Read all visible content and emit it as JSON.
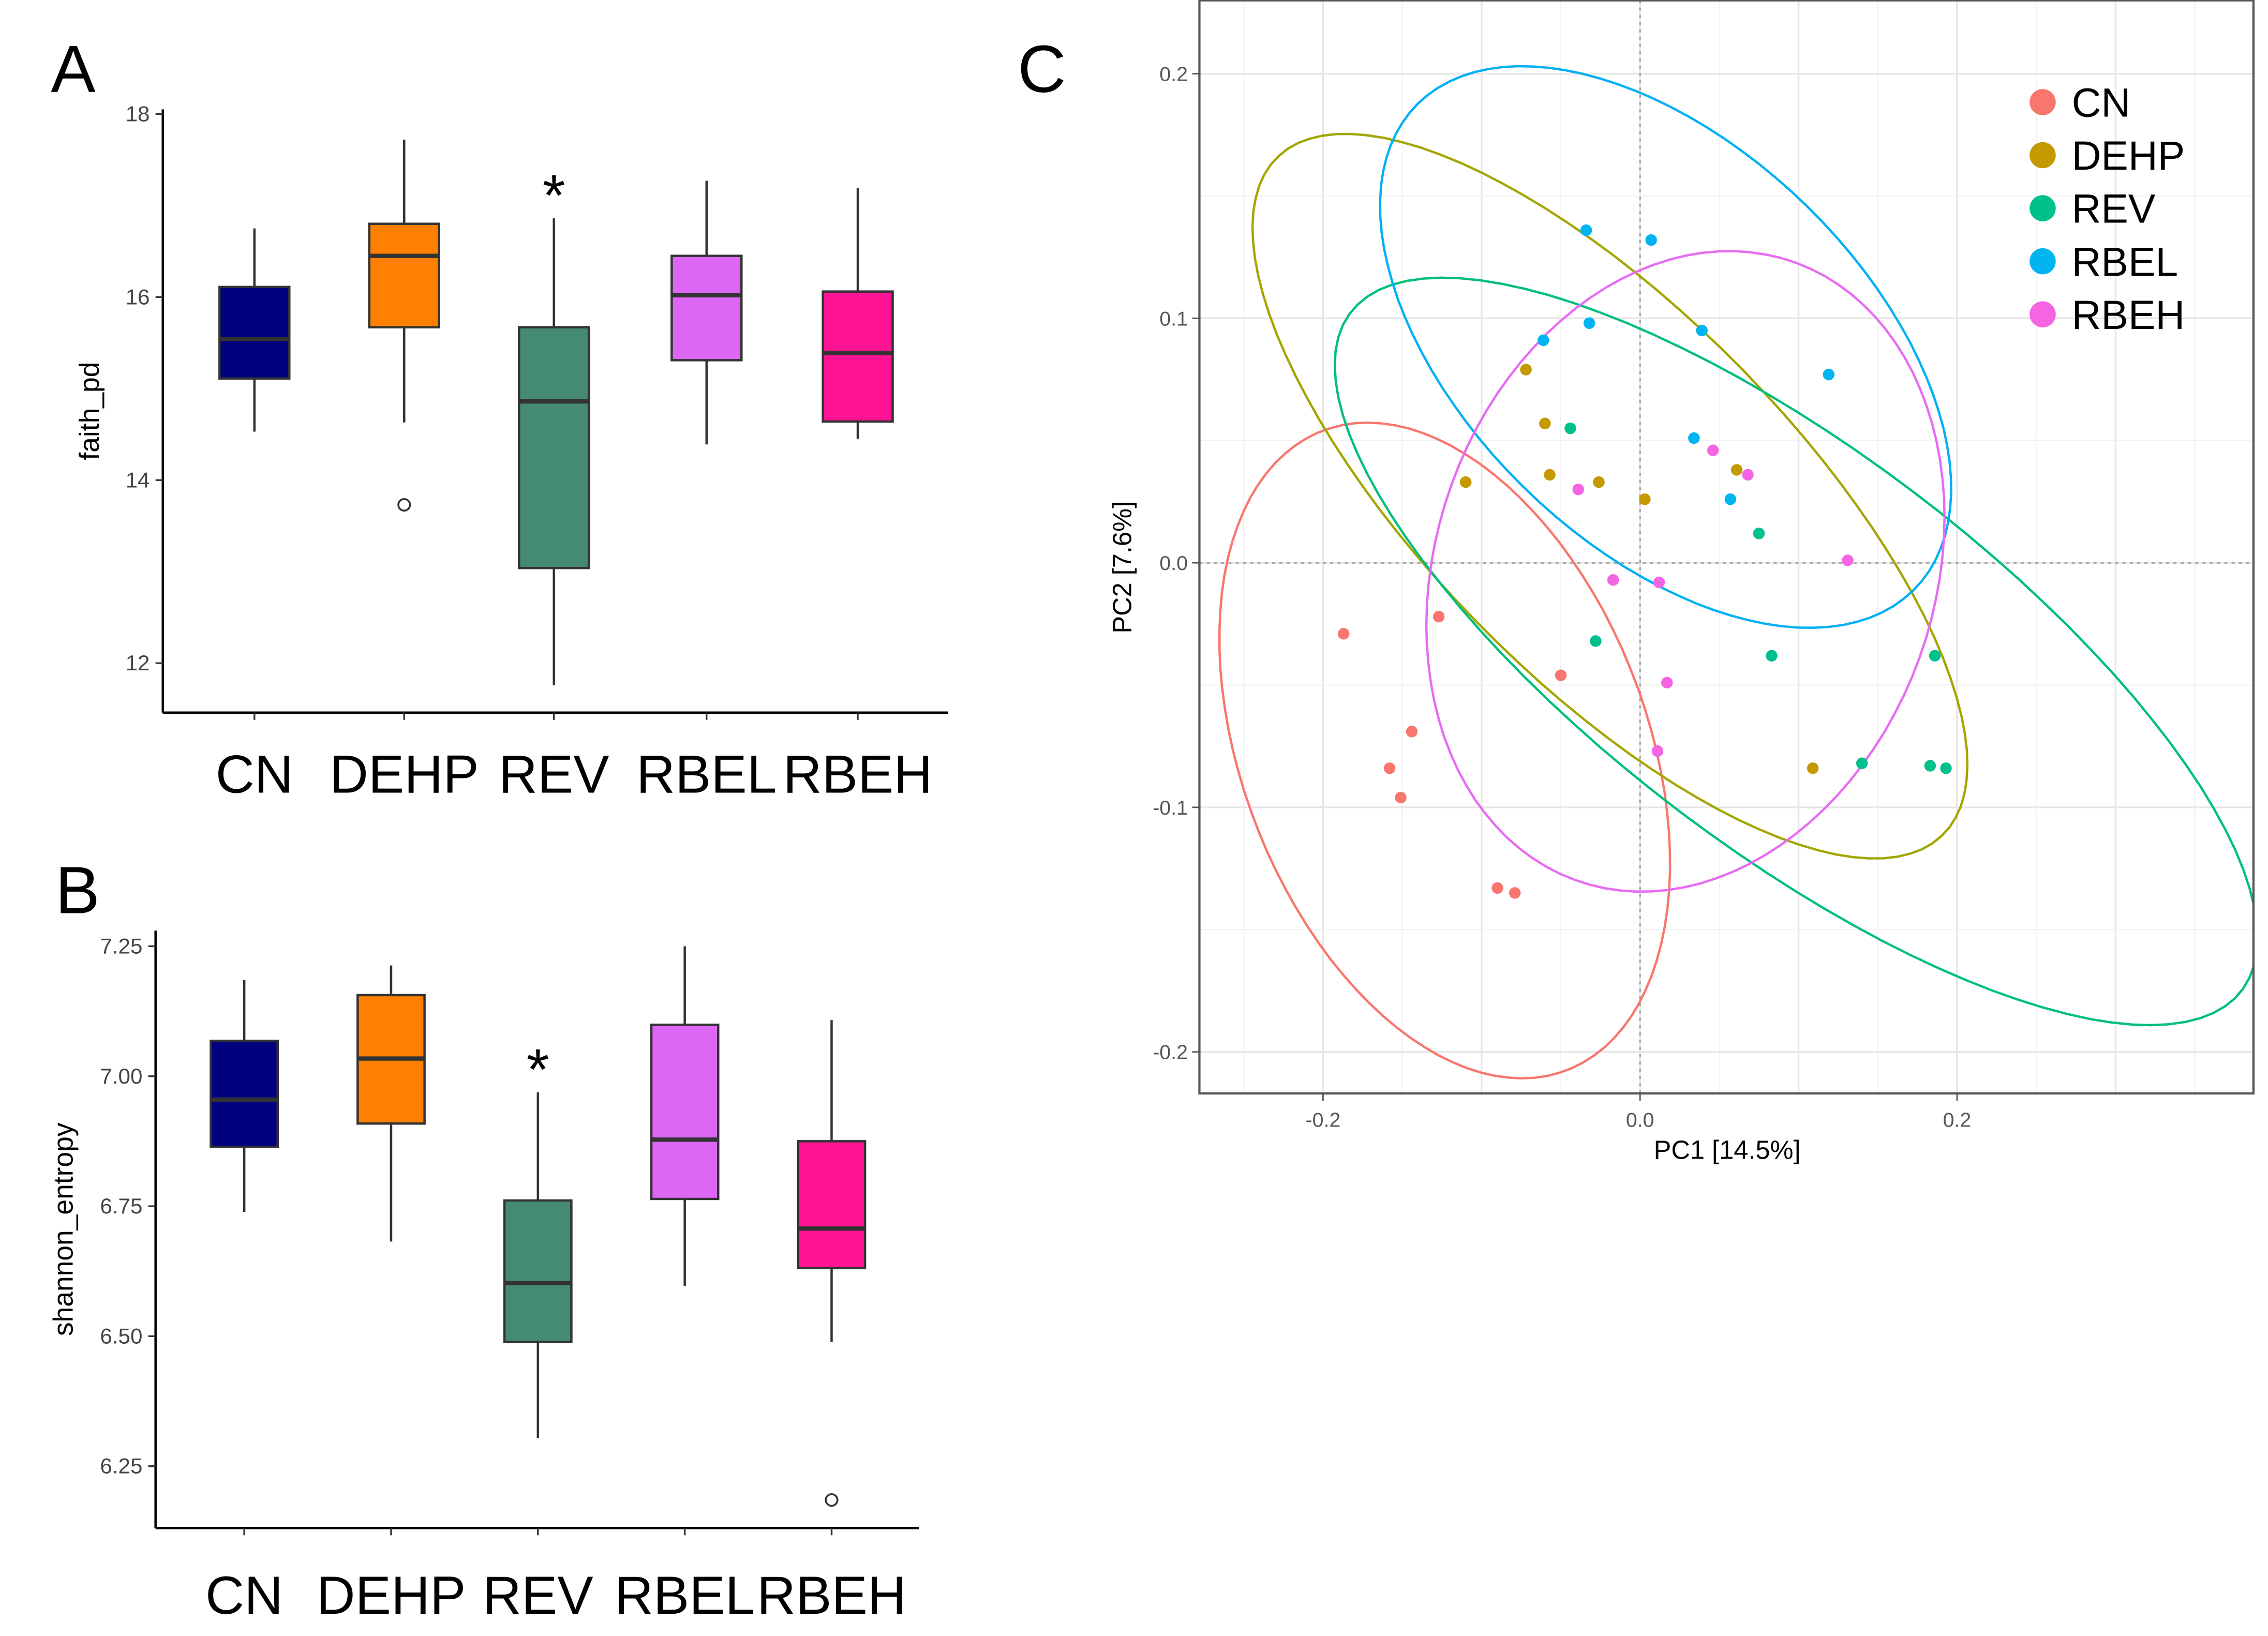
{
  "chart_data": [
    {
      "panel_label": "A",
      "type": "box",
      "ylabel": "faith_pd",
      "categories": [
        "CN",
        "DEHP",
        "REV",
        "RBEL",
        "RBEH"
      ],
      "colors": [
        "#000080",
        "#FF8000",
        "#458B74",
        "#DD66F5",
        "#FF1493"
      ],
      "boxes": [
        {
          "whisker_low": 14.53,
          "q1": 15.11,
          "median": 15.54,
          "q3": 16.11,
          "whisker_high": 16.75,
          "outliers": []
        },
        {
          "whisker_low": 14.63,
          "q1": 15.67,
          "median": 16.45,
          "q3": 16.8,
          "whisker_high": 17.72,
          "outliers": [
            13.73
          ]
        },
        {
          "whisker_low": 11.76,
          "q1": 13.04,
          "median": 14.86,
          "q3": 15.67,
          "whisker_high": 16.86,
          "outliers": []
        },
        {
          "whisker_low": 14.39,
          "q1": 15.31,
          "median": 16.02,
          "q3": 16.45,
          "whisker_high": 17.27,
          "outliers": []
        },
        {
          "whisker_low": 14.45,
          "q1": 14.64,
          "median": 15.39,
          "q3": 16.06,
          "whisker_high": 17.19,
          "outliers": []
        }
      ],
      "significance": {
        "category": "REV",
        "mark": "*"
      },
      "yticks": [
        "12",
        "14",
        "16",
        "18"
      ],
      "ylim": [
        11.46,
        18.05
      ]
    },
    {
      "panel_label": "B",
      "type": "box",
      "ylabel": "shannon_entropy",
      "categories": [
        "CN",
        "DEHP",
        "REV",
        "RBEL",
        "RBEH"
      ],
      "colors": [
        "#000080",
        "#FF8000",
        "#458B74",
        "#DD66F5",
        "#FF1493"
      ],
      "boxes": [
        {
          "whisker_low": 6.739,
          "q1": 6.864,
          "median": 6.955,
          "q3": 7.068,
          "whisker_high": 7.185,
          "outliers": []
        },
        {
          "whisker_low": 6.682,
          "q1": 6.909,
          "median": 7.034,
          "q3": 7.156,
          "whisker_high": 7.213,
          "outliers": []
        },
        {
          "whisker_low": 6.304,
          "q1": 6.489,
          "median": 6.602,
          "q3": 6.761,
          "whisker_high": 6.969,
          "outliers": []
        },
        {
          "whisker_low": 6.597,
          "q1": 6.764,
          "median": 6.878,
          "q3": 7.099,
          "whisker_high": 7.25,
          "outliers": []
        },
        {
          "whisker_low": 6.489,
          "q1": 6.631,
          "median": 6.707,
          "q3": 6.875,
          "whisker_high": 7.108,
          "outliers": [
            6.185
          ]
        }
      ],
      "significance": {
        "category": "REV",
        "mark": "*"
      },
      "yticks": [
        "6.25",
        "6.50",
        "6.75",
        "7.00",
        "7.25"
      ],
      "ylim": [
        6.131,
        7.28
      ]
    },
    {
      "panel_label": "C",
      "type": "scatter",
      "xlabel": "PC1   [14.5%]",
      "ylabel": "PC2   [7.6%]",
      "xticks": [
        "-0.2",
        "0.0",
        "0.2"
      ],
      "yticks": [
        "-0.2",
        "-0.1",
        "0.0",
        "0.1",
        "0.2"
      ],
      "xlim": [
        -0.278,
        0.387
      ],
      "ylim": [
        -0.217,
        0.23
      ],
      "grid": true,
      "ellipses": true,
      "legend_position": "top-right",
      "series": [
        {
          "name": "CN",
          "point_color": "#F8766D",
          "ellipse_color": "#F8766D",
          "points": [
            [
              -0.187,
              -0.029
            ],
            [
              -0.127,
              -0.022
            ],
            [
              -0.05,
              -0.046
            ],
            [
              -0.144,
              -0.069
            ],
            [
              -0.158,
              -0.084
            ],
            [
              -0.151,
              -0.096
            ],
            [
              -0.09,
              -0.133
            ],
            [
              -0.079,
              -0.135
            ]
          ]
        },
        {
          "name": "DEHP",
          "point_color": "#C49A00",
          "ellipse_color": "#A3A500",
          "points": [
            [
              -0.072,
              0.079
            ],
            [
              -0.06,
              0.057
            ],
            [
              -0.11,
              0.033
            ],
            [
              -0.057,
              0.036
            ],
            [
              -0.026,
              0.033
            ],
            [
              0.003,
              0.026
            ],
            [
              0.061,
              0.038
            ],
            [
              0.109,
              -0.084
            ]
          ]
        },
        {
          "name": "REV",
          "point_color": "#00C08B",
          "ellipse_color": "#00BF7D",
          "points": [
            [
              -0.044,
              0.055
            ],
            [
              0.075,
              0.012
            ],
            [
              -0.028,
              -0.032
            ],
            [
              0.083,
              -0.038
            ],
            [
              0.186,
              -0.038
            ],
            [
              0.14,
              -0.082
            ],
            [
              0.183,
              -0.083
            ],
            [
              0.193,
              -0.084
            ]
          ]
        },
        {
          "name": "RBEL",
          "point_color": "#00B4F0",
          "ellipse_color": "#00B0F6",
          "points": [
            [
              -0.034,
              0.136
            ],
            [
              0.007,
              0.132
            ],
            [
              -0.032,
              0.098
            ],
            [
              -0.061,
              0.091
            ],
            [
              0.039,
              0.095
            ],
            [
              0.119,
              0.077
            ],
            [
              0.034,
              0.051
            ],
            [
              0.057,
              0.026
            ]
          ]
        },
        {
          "name": "RBEH",
          "point_color": "#F564E3",
          "ellipse_color": "#E76BF3",
          "points": [
            [
              0.046,
              0.046
            ],
            [
              0.068,
              0.036
            ],
            [
              -0.039,
              0.03
            ],
            [
              0.131,
              0.001
            ],
            [
              -0.017,
              -0.007
            ],
            [
              0.012,
              -0.008
            ],
            [
              0.017,
              -0.049
            ],
            [
              0.011,
              -0.077
            ]
          ]
        }
      ]
    }
  ]
}
